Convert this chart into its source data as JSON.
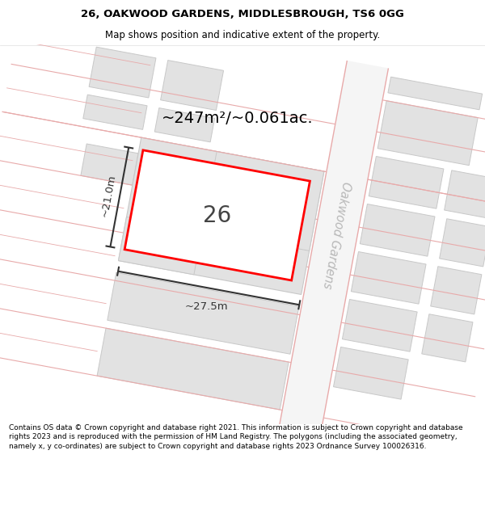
{
  "title_line1": "26, OAKWOOD GARDENS, MIDDLESBROUGH, TS6 0GG",
  "title_line2": "Map shows position and indicative extent of the property.",
  "footer": "Contains OS data © Crown copyright and database right 2021. This information is subject to Crown copyright and database rights 2023 and is reproduced with the permission of HM Land Registry. The polygons (including the associated geometry, namely x, y co-ordinates) are subject to Crown copyright and database rights 2023 Ordnance Survey 100026316.",
  "area_text": "~247m²/~0.061ac.",
  "label_26": "26",
  "dim_width": "~27.5m",
  "dim_height": "~21.0m",
  "road_label": "Oakwood Gardens",
  "bg_color": "#ffffff",
  "building_fill": "#e2e2e2",
  "building_stroke": "#c8c8c8",
  "road_fill": "#f5f5f5",
  "road_stroke": "#e8aaaa",
  "highlight_stroke": "#ff0000",
  "dim_color": "#333333",
  "text_color": "#000000",
  "road_text_color": "#b8b8b8",
  "title_fontsize": 9.5,
  "subtitle_fontsize": 8.5,
  "footer_fontsize": 6.5,
  "area_fontsize": 14,
  "label_fontsize": 20,
  "dim_fontsize": 9.5,
  "road_fontsize": 10.5,
  "map_border_color": "#dddddd"
}
